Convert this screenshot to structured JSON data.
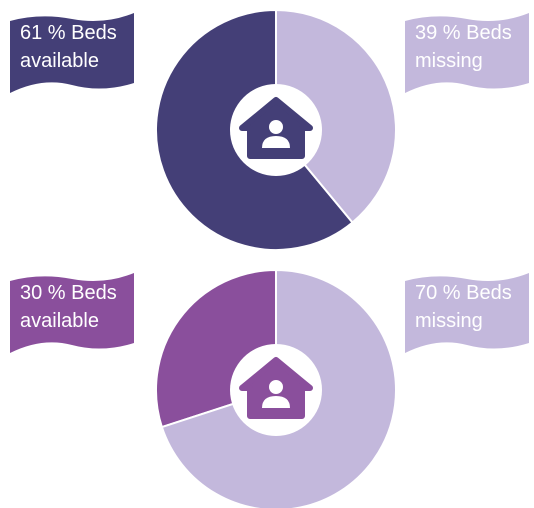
{
  "chart_data": [
    {
      "type": "pie",
      "values": [
        61,
        39
      ],
      "value_labels": [
        "61 % Beds available",
        "39 % Beds missing"
      ],
      "colors": [
        "#443f77",
        "#c3b8dc"
      ]
    },
    {
      "type": "pie",
      "values": [
        30,
        70
      ],
      "value_labels": [
        "30 % Beds available",
        "70 % Beds missing"
      ],
      "colors": [
        "#8a4f9c",
        "#c3b8dc"
      ]
    }
  ]
}
